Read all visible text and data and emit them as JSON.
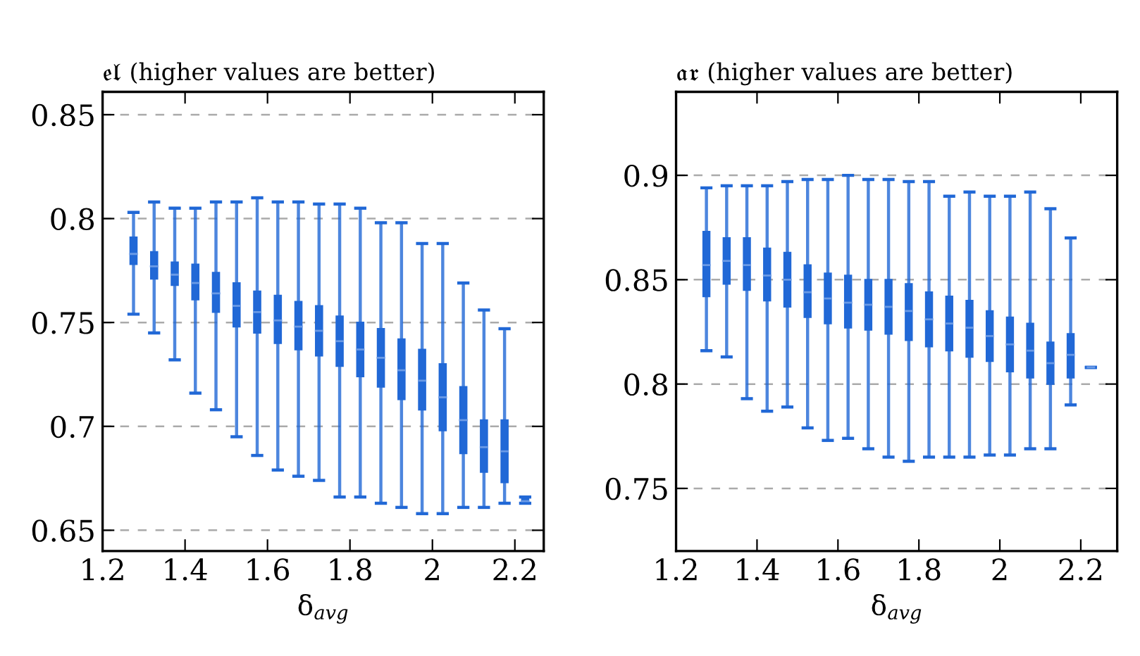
{
  "chart_data": [
    {
      "type": "box",
      "title": "𝔢𝔩 (higher values are better)",
      "xlabel": "δ$_{avg}$",
      "color": "#2168d6",
      "grid": "y",
      "xlim": [
        1.2,
        2.27
      ],
      "xticks": [
        1.2,
        1.4,
        1.6,
        1.8,
        2,
        2.2
      ],
      "ylim": [
        0.64,
        0.861
      ],
      "yticks": [
        0.65,
        0.7,
        0.75,
        0.8,
        0.85
      ],
      "x": [
        1.275,
        1.325,
        1.375,
        1.425,
        1.475,
        1.525,
        1.575,
        1.625,
        1.675,
        1.725,
        1.775,
        1.825,
        1.875,
        1.925,
        1.975,
        2.025,
        2.075,
        2.125,
        2.175,
        2.225
      ],
      "boxes": [
        {
          "low": 0.754,
          "q1": 0.778,
          "median": 0.783,
          "q3": 0.791,
          "high": 0.803
        },
        {
          "low": 0.745,
          "q1": 0.771,
          "median": 0.777,
          "q3": 0.784,
          "high": 0.808
        },
        {
          "low": 0.732,
          "q1": 0.768,
          "median": 0.773,
          "q3": 0.779,
          "high": 0.805
        },
        {
          "low": 0.716,
          "q1": 0.761,
          "median": 0.769,
          "q3": 0.778,
          "high": 0.805
        },
        {
          "low": 0.708,
          "q1": 0.755,
          "median": 0.764,
          "q3": 0.774,
          "high": 0.808
        },
        {
          "low": 0.695,
          "q1": 0.748,
          "median": 0.758,
          "q3": 0.769,
          "high": 0.808
        },
        {
          "low": 0.686,
          "q1": 0.745,
          "median": 0.755,
          "q3": 0.765,
          "high": 0.81
        },
        {
          "low": 0.679,
          "q1": 0.74,
          "median": 0.751,
          "q3": 0.763,
          "high": 0.808
        },
        {
          "low": 0.676,
          "q1": 0.737,
          "median": 0.748,
          "q3": 0.76,
          "high": 0.808
        },
        {
          "low": 0.674,
          "q1": 0.734,
          "median": 0.746,
          "q3": 0.758,
          "high": 0.807
        },
        {
          "low": 0.666,
          "q1": 0.729,
          "median": 0.741,
          "q3": 0.753,
          "high": 0.807
        },
        {
          "low": 0.666,
          "q1": 0.724,
          "median": 0.737,
          "q3": 0.75,
          "high": 0.805
        },
        {
          "low": 0.663,
          "q1": 0.719,
          "median": 0.733,
          "q3": 0.747,
          "high": 0.798
        },
        {
          "low": 0.661,
          "q1": 0.713,
          "median": 0.727,
          "q3": 0.742,
          "high": 0.798
        },
        {
          "low": 0.658,
          "q1": 0.708,
          "median": 0.722,
          "q3": 0.737,
          "high": 0.788
        },
        {
          "low": 0.658,
          "q1": 0.698,
          "median": 0.714,
          "q3": 0.73,
          "high": 0.788
        },
        {
          "low": 0.661,
          "q1": 0.687,
          "median": 0.703,
          "q3": 0.719,
          "high": 0.769
        },
        {
          "low": 0.661,
          "q1": 0.678,
          "median": 0.69,
          "q3": 0.703,
          "high": 0.756
        },
        {
          "low": 0.663,
          "q1": 0.673,
          "median": 0.688,
          "q3": 0.703,
          "high": 0.747
        },
        {
          "low": 0.663,
          "q1": 0.664,
          "median": 0.664,
          "q3": 0.665,
          "high": 0.666
        }
      ]
    },
    {
      "type": "box",
      "title": "𝔞𝔯 (higher values are better)",
      "xlabel": "δ$_{avg}$",
      "color": "#2168d6",
      "grid": "y",
      "xlim": [
        1.2,
        2.29
      ],
      "xticks": [
        1.2,
        1.4,
        1.6,
        1.8,
        2,
        2.2
      ],
      "ylim": [
        0.72,
        0.94
      ],
      "yticks": [
        0.75,
        0.8,
        0.85,
        0.9
      ],
      "x": [
        1.275,
        1.325,
        1.375,
        1.425,
        1.475,
        1.525,
        1.575,
        1.625,
        1.675,
        1.725,
        1.775,
        1.825,
        1.875,
        1.925,
        1.975,
        2.025,
        2.075,
        2.125,
        2.175,
        2.225
      ],
      "boxes": [
        {
          "low": 0.816,
          "q1": 0.842,
          "median": 0.857,
          "q3": 0.873,
          "high": 0.894
        },
        {
          "low": 0.813,
          "q1": 0.848,
          "median": 0.859,
          "q3": 0.87,
          "high": 0.895
        },
        {
          "low": 0.793,
          "q1": 0.845,
          "median": 0.857,
          "q3": 0.87,
          "high": 0.895
        },
        {
          "low": 0.787,
          "q1": 0.84,
          "median": 0.852,
          "q3": 0.865,
          "high": 0.895
        },
        {
          "low": 0.789,
          "q1": 0.837,
          "median": 0.85,
          "q3": 0.863,
          "high": 0.897
        },
        {
          "low": 0.779,
          "q1": 0.832,
          "median": 0.844,
          "q3": 0.857,
          "high": 0.898
        },
        {
          "low": 0.773,
          "q1": 0.829,
          "median": 0.841,
          "q3": 0.853,
          "high": 0.898
        },
        {
          "low": 0.774,
          "q1": 0.827,
          "median": 0.839,
          "q3": 0.852,
          "high": 0.9
        },
        {
          "low": 0.769,
          "q1": 0.826,
          "median": 0.838,
          "q3": 0.85,
          "high": 0.898
        },
        {
          "low": 0.765,
          "q1": 0.824,
          "median": 0.837,
          "q3": 0.85,
          "high": 0.898
        },
        {
          "low": 0.763,
          "q1": 0.821,
          "median": 0.835,
          "q3": 0.848,
          "high": 0.897
        },
        {
          "low": 0.765,
          "q1": 0.818,
          "median": 0.831,
          "q3": 0.844,
          "high": 0.897
        },
        {
          "low": 0.765,
          "q1": 0.816,
          "median": 0.829,
          "q3": 0.842,
          "high": 0.89
        },
        {
          "low": 0.765,
          "q1": 0.813,
          "median": 0.827,
          "q3": 0.84,
          "high": 0.892
        },
        {
          "low": 0.766,
          "q1": 0.811,
          "median": 0.823,
          "q3": 0.835,
          "high": 0.89
        },
        {
          "low": 0.766,
          "q1": 0.806,
          "median": 0.819,
          "q3": 0.832,
          "high": 0.89
        },
        {
          "low": 0.769,
          "q1": 0.803,
          "median": 0.816,
          "q3": 0.829,
          "high": 0.892
        },
        {
          "low": 0.769,
          "q1": 0.8,
          "median": 0.81,
          "q3": 0.82,
          "high": 0.884
        },
        {
          "low": 0.79,
          "q1": 0.803,
          "median": 0.814,
          "q3": 0.824,
          "high": 0.87
        },
        {
          "low": 0.808,
          "q1": 0.808,
          "median": 0.808,
          "q3": 0.808,
          "high": 0.808
        }
      ]
    }
  ]
}
